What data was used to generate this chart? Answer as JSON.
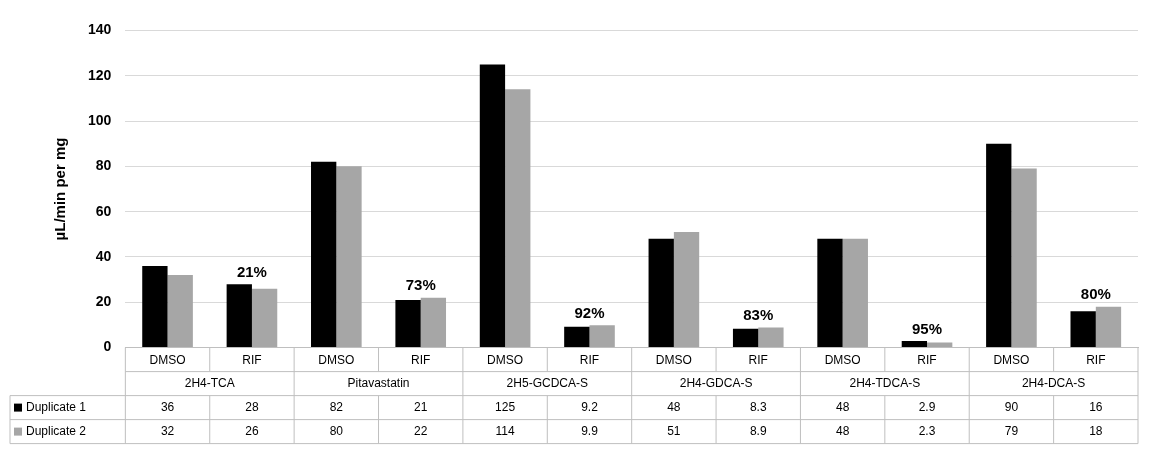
{
  "chart_data": {
    "type": "bar",
    "ylabel": "µL/min per mg",
    "categories": [
      "DMSO",
      "RIF",
      "DMSO",
      "RIF",
      "DMSO",
      "RIF",
      "DMSO",
      "RIF",
      "DMSO",
      "RIF",
      "DMSO",
      "RIF"
    ],
    "series": [
      {
        "name": "Duplicate 1",
        "color": "#000000",
        "values": [
          36,
          28,
          82,
          21,
          125,
          9.2,
          48,
          8.3,
          48,
          2.9,
          90,
          16
        ]
      },
      {
        "name": "Duplicate 2",
        "color": "#a6a6a6",
        "values": [
          32,
          26,
          80,
          22,
          114,
          9.9,
          51,
          8.9,
          48,
          2.3,
          79,
          18
        ]
      }
    ],
    "annotations": [
      "2H4-TCA",
      "Pitavastatin",
      "2H5-GCDCA-S",
      "2H4-GDCA-S",
      "2H4-TDCA-S",
      "2H4-DCA-S",
      "21%",
      "73%",
      "92%",
      "83%",
      "95%",
      "80%"
    ],
    "ylim": [
      0,
      140
    ],
    "yticks": [
      0,
      20,
      40,
      60,
      80,
      100,
      120,
      140
    ],
    "grid": "y",
    "legend": "bottom left",
    "data_labels": true
  }
}
